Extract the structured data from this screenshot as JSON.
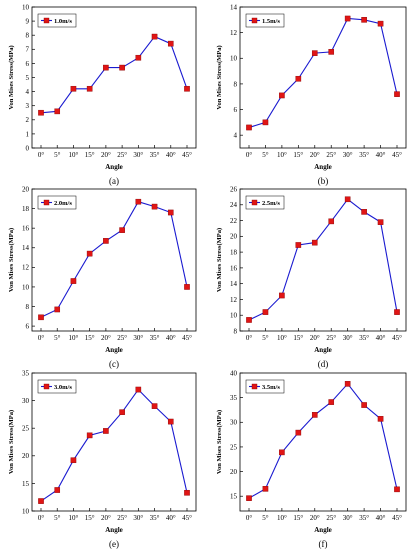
{
  "chart_data": [
    {
      "type": "line",
      "panel": "(a)",
      "categories": [
        "0°",
        "5°",
        "10°",
        "15°",
        "20°",
        "25°",
        "30°",
        "35°",
        "40°",
        "45°"
      ],
      "series": [
        {
          "name": "1.0m/s",
          "values": [
            2.5,
            2.6,
            4.2,
            4.2,
            5.7,
            5.7,
            6.4,
            7.9,
            7.4,
            4.2
          ]
        }
      ],
      "xlabel": "Angle",
      "ylabel": "Von Mises Stress(MPa)",
      "ylim": [
        0,
        10
      ],
      "yticks": [
        0,
        1,
        2,
        3,
        4,
        5,
        6,
        7,
        8,
        9,
        10
      ],
      "legend": "top-left",
      "caption": "(a)"
    },
    {
      "type": "line",
      "panel": "(b)",
      "categories": [
        "0°",
        "5°",
        "10°",
        "15°",
        "20°",
        "25°",
        "30°",
        "35°",
        "40°",
        "45°"
      ],
      "series": [
        {
          "name": "1.5m/s",
          "values": [
            4.6,
            5.0,
            7.1,
            8.4,
            10.4,
            10.5,
            13.1,
            13.0,
            12.7,
            7.2
          ]
        }
      ],
      "xlabel": "Angle",
      "ylabel": "Von Mises Stress(MPa)",
      "ylim": [
        3,
        14
      ],
      "yticks": [
        4,
        6,
        8,
        10,
        12,
        14
      ],
      "legend": "top-left",
      "caption": "(b)"
    },
    {
      "type": "line",
      "panel": "(c)",
      "categories": [
        "0°",
        "5°",
        "10°",
        "15°",
        "20°",
        "25°",
        "30°",
        "35°",
        "40°",
        "45°"
      ],
      "series": [
        {
          "name": "2.0m/s",
          "values": [
            6.9,
            7.7,
            10.6,
            13.4,
            14.7,
            15.8,
            18.7,
            18.2,
            17.6,
            10.0
          ]
        }
      ],
      "xlabel": "Angle",
      "ylabel": "Von Mises Stress(MPa)",
      "ylim": [
        5.5,
        20
      ],
      "yticks": [
        6,
        8,
        10,
        12,
        14,
        16,
        18,
        20
      ],
      "legend": "top-left",
      "caption": "(c)"
    },
    {
      "type": "line",
      "panel": "(d)",
      "categories": [
        "0°",
        "5°",
        "10°",
        "15°",
        "20°",
        "25°",
        "30°",
        "35°",
        "40°",
        "45°"
      ],
      "series": [
        {
          "name": "2.5m/s",
          "values": [
            9.4,
            10.4,
            12.5,
            18.9,
            19.2,
            21.9,
            24.7,
            23.1,
            21.8,
            10.4
          ]
        }
      ],
      "xlabel": "Angle",
      "ylabel": "Von Mises Stress(MPa)",
      "ylim": [
        8,
        26
      ],
      "yticks": [
        8,
        10,
        12,
        14,
        16,
        18,
        20,
        22,
        24,
        26
      ],
      "legend": "top-left",
      "caption": "(d)"
    },
    {
      "type": "line",
      "panel": "(e)",
      "categories": [
        "0°",
        "5°",
        "10°",
        "15°",
        "20°",
        "25°",
        "30°",
        "35°",
        "40°",
        "45°"
      ],
      "series": [
        {
          "name": "3.0m/s",
          "values": [
            11.8,
            13.8,
            19.2,
            23.7,
            24.5,
            27.9,
            32.0,
            29.0,
            26.2,
            13.3
          ]
        }
      ],
      "xlabel": "Angle",
      "ylabel": "Von Mises Stress(MPa)",
      "ylim": [
        10,
        35
      ],
      "yticks": [
        10,
        15,
        20,
        25,
        30,
        35
      ],
      "legend": "top-left",
      "caption": "(e)"
    },
    {
      "type": "line",
      "panel": "(f)",
      "categories": [
        "0°",
        "5°",
        "10°",
        "15°",
        "20°",
        "25°",
        "30°",
        "35°",
        "40°",
        "45°"
      ],
      "series": [
        {
          "name": "3.5m/s",
          "values": [
            14.6,
            16.5,
            23.9,
            27.9,
            31.5,
            34.1,
            37.8,
            33.5,
            30.7,
            16.4
          ]
        }
      ],
      "xlabel": "Angle",
      "ylabel": "Von Mises Stress(MPa)",
      "ylim": [
        12,
        40
      ],
      "yticks": [
        15,
        20,
        25,
        30,
        35,
        40
      ],
      "legend": "top-left",
      "caption": "(f)"
    }
  ],
  "colors": {
    "line": "#1a1ad0",
    "marker": "#e01515"
  }
}
